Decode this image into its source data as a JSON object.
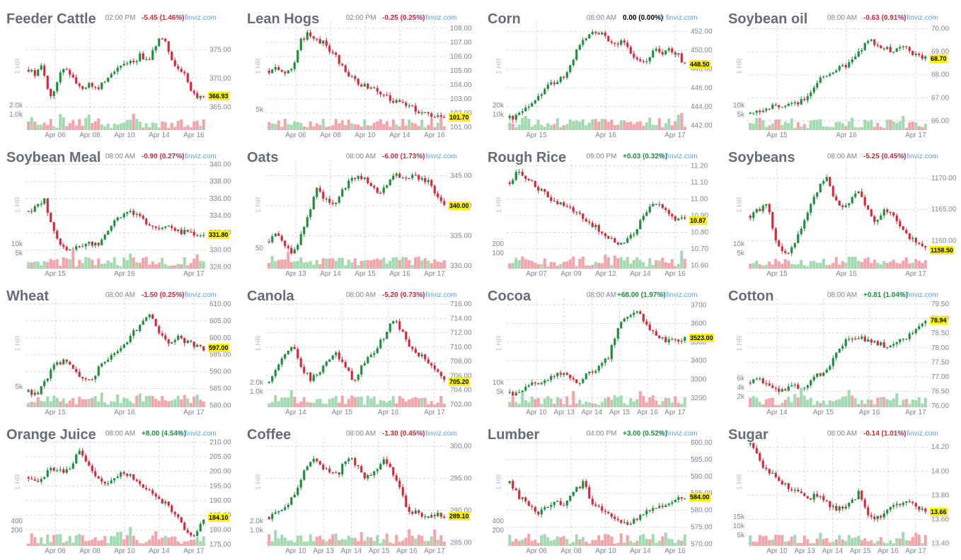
{
  "charts": [
    {
      "name": "Feeder Cattle",
      "time": "02:00 PM",
      "change": "-5.45 (1.46%)",
      "dir": "down",
      "credit": "© finviz.com",
      "ylabel": "1 HR",
      "last": "366.93",
      "yticks": [
        "375.00",
        "370.00",
        "365.00"
      ],
      "ylim": [
        361.0,
        379.5
      ],
      "volticks": [
        "2.0k",
        "1.0k"
      ],
      "xticks": [
        "Apr 06",
        "Apr 08",
        "Apr 10",
        "Apr 14",
        "Apr 16"
      ],
      "path": [
        371.5,
        370.5,
        372.5,
        366.5,
        369.0,
        372.0,
        371.0,
        368.5,
        368.5,
        369.0,
        368.0,
        370.0,
        371.5,
        372.0,
        373.0,
        373.0,
        374.0,
        373.0,
        375.5,
        377.5,
        375.0,
        372.0,
        371.5,
        368.0,
        367.0,
        366.93
      ]
    },
    {
      "name": "Lean Hogs",
      "time": "02:00 PM",
      "change": "-0.25 (0.25%)",
      "dir": "down",
      "credit": "© finviz.com",
      "ylabel": "1 HR",
      "last": "101.70",
      "yticks": [
        "108.00",
        "107.00",
        "106.00",
        "105.00",
        "104.00",
        "103.00",
        "102.00",
        "101.00"
      ],
      "ylim": [
        100.8,
        108.3
      ],
      "volticks": [
        "5k"
      ],
      "xticks": [
        "Apr 06",
        "Apr 08",
        "Apr 10",
        "Apr 14",
        "Apr 16"
      ],
      "path": [
        105.0,
        105.2,
        104.8,
        105.1,
        107.0,
        107.6,
        107.3,
        107.0,
        106.5,
        105.8,
        105.0,
        104.4,
        104.0,
        103.8,
        103.6,
        103.3,
        103.0,
        102.7,
        102.5,
        102.3,
        102.1,
        101.9,
        101.8,
        101.7
      ]
    },
    {
      "name": "Corn",
      "time": "08:00 AM",
      "change": "0.00 (0.00%)",
      "dir": "flat",
      "credit": "© finviz.com",
      "ylabel": "1 HR",
      "last": "448.50",
      "yticks": [
        "452.00",
        "450.00",
        "448.00",
        "446.00",
        "444.00",
        "442.00"
      ],
      "ylim": [
        441.5,
        452.8
      ],
      "volticks": [
        "20k",
        "10k"
      ],
      "xticks": [
        "Apr 15",
        "Apr 16",
        "Apr 17"
      ],
      "path": [
        442.8,
        443.0,
        443.5,
        444.0,
        445.0,
        446.0,
        446.5,
        446.8,
        447.5,
        449.0,
        450.5,
        451.5,
        452.0,
        451.8,
        451.0,
        450.5,
        451.0,
        450.0,
        449.0,
        448.5,
        449.5,
        450.0,
        449.8,
        450.2,
        449.5,
        448.5
      ]
    },
    {
      "name": "Soybean oil",
      "time": "08:00 AM",
      "change": "-0.63 (0.91%)",
      "dir": "down",
      "credit": "© finviz.com",
      "ylabel": "1 HR",
      "last": "68.70",
      "yticks": [
        "70.00",
        "69.00",
        "68.00",
        "67.00",
        "66.00"
      ],
      "ylim": [
        65.6,
        70.2
      ],
      "volticks": [
        "10k",
        "5k"
      ],
      "xticks": [
        "Apr 15",
        "Apr 16",
        "Apr 17"
      ],
      "path": [
        66.3,
        66.4,
        66.5,
        66.6,
        66.7,
        66.8,
        66.7,
        66.9,
        67.3,
        67.8,
        68.0,
        68.2,
        68.3,
        68.5,
        68.8,
        69.3,
        69.5,
        69.2,
        69.1,
        69.0,
        69.2,
        69.0,
        68.8,
        68.7
      ]
    },
    {
      "name": "Soybean Meal",
      "time": "08:00 AM",
      "change": "-0.90 (0.27%)",
      "dir": "down",
      "credit": "© finviz.com",
      "ylabel": "1 HR",
      "last": "331.80",
      "yticks": [
        "340.00",
        "338.00",
        "336.00",
        "334.00",
        "332.00",
        "330.00",
        "328.00"
      ],
      "ylim": [
        327.8,
        340.2
      ],
      "volticks": [
        "10k",
        "5k"
      ],
      "xticks": [
        "Apr 15",
        "Apr 16",
        "Apr 17"
      ],
      "path": [
        334.5,
        335.0,
        336.0,
        333.0,
        331.0,
        330.0,
        330.2,
        330.5,
        331.0,
        330.5,
        332.0,
        333.0,
        334.0,
        334.5,
        334.0,
        333.5,
        333.0,
        332.5,
        333.0,
        332.5,
        332.0,
        332.2,
        331.8,
        331.8
      ]
    },
    {
      "name": "Oats",
      "time": "08:00 AM",
      "change": "-6.00 (1.73%)",
      "dir": "down",
      "credit": "© finviz.com",
      "ylabel": "1 HR",
      "last": "340.00",
      "yticks": [
        "345.00",
        "340.00",
        "335.00",
        "330.00"
      ],
      "ylim": [
        329.5,
        347.2
      ],
      "volticks": [
        "50"
      ],
      "xticks": [
        "Apr 13",
        "Apr 14",
        "Apr 15",
        "Apr 16",
        "Apr 17"
      ],
      "path": [
        334.0,
        336.0,
        333.0,
        332.0,
        335.0,
        339.0,
        343.0,
        341.0,
        340.0,
        342.0,
        344.0,
        345.0,
        344.5,
        343.5,
        342.0,
        344.0,
        345.5,
        344.0,
        345.0,
        344.5,
        344.0,
        342.0,
        340.0
      ]
    },
    {
      "name": "Rough Rice",
      "time": "09:00 PM",
      "change": "+0.03 (0.32%)",
      "dir": "up",
      "credit": "© finviz.com",
      "ylabel": "1 HR",
      "last": "10.87",
      "yticks": [
        "11.20",
        "11.10",
        "11.00",
        "10.90",
        "10.80",
        "10.70",
        "10.60"
      ],
      "ylim": [
        10.58,
        11.22
      ],
      "volticks": [
        "200",
        "100"
      ],
      "xticks": [
        "Apr 07",
        "Apr 09",
        "Apr 12",
        "Apr 14",
        "Apr 16"
      ],
      "path": [
        11.1,
        11.17,
        11.12,
        11.08,
        11.05,
        11.0,
        10.97,
        10.95,
        10.92,
        10.88,
        10.84,
        10.8,
        10.76,
        10.72,
        10.74,
        10.8,
        10.9,
        10.98,
        10.96,
        10.92,
        10.88,
        10.87
      ]
    },
    {
      "name": "Soybeans",
      "time": "08:00 AM",
      "change": "-5.25 (0.45%)",
      "dir": "down",
      "credit": "© finviz.com",
      "ylabel": "1 HR",
      "last": "1158.50",
      "yticks": [
        "1170.00",
        "1165.00",
        "1160.00"
      ],
      "ylim": [
        1155.5,
        1172.5
      ],
      "volticks": [
        "10k",
        "5k"
      ],
      "xticks": [
        "Apr 15",
        "Apr 16",
        "Apr 17"
      ],
      "path": [
        1164.0,
        1165.0,
        1166.0,
        1160.0,
        1157.5,
        1159.0,
        1162.0,
        1165.0,
        1168.0,
        1170.5,
        1167.0,
        1165.0,
        1166.5,
        1168.0,
        1165.0,
        1163.0,
        1165.0,
        1164.0,
        1162.0,
        1160.5,
        1159.5,
        1158.5
      ]
    },
    {
      "name": "Wheat",
      "time": "08:00 AM",
      "change": "-1.50 (0.25%)",
      "dir": "down",
      "credit": "© finviz.com",
      "ylabel": "1 HR",
      "last": "597.00",
      "yticks": [
        "610.00",
        "605.00",
        "600.00",
        "595.00",
        "590.00",
        "585.00",
        "580.00"
      ],
      "ylim": [
        579.5,
        610.8
      ],
      "volticks": [
        "5k"
      ],
      "xticks": [
        "Apr 15",
        "Apr 16",
        "Apr 17"
      ],
      "path": [
        584.0,
        583.0,
        588.0,
        592.0,
        593.0,
        591.0,
        588.0,
        587.0,
        591.0,
        594.0,
        595.0,
        598.0,
        602.0,
        604.0,
        607.0,
        601.0,
        599.0,
        600.0,
        599.0,
        598.0,
        597.0
      ]
    },
    {
      "name": "Canola",
      "time": "08:00 AM",
      "change": "-5.20 (0.73%)",
      "dir": "down",
      "credit": "© finviz.com",
      "ylabel": "1 HR",
      "last": "705.20",
      "yticks": [
        "716.00",
        "714.00",
        "712.00",
        "710.00",
        "708.00",
        "706.00",
        "704.00",
        "702.00"
      ],
      "ylim": [
        701.6,
        716.4
      ],
      "volticks": [
        "2.0k",
        "1.0k"
      ],
      "xticks": [
        "Apr 14",
        "Apr 15",
        "Apr 16",
        "Apr 17"
      ],
      "path": [
        705.0,
        707.0,
        709.0,
        710.0,
        707.0,
        705.5,
        706.5,
        708.0,
        709.0,
        708.0,
        705.0,
        707.0,
        708.5,
        710.0,
        712.0,
        714.0,
        712.0,
        710.0,
        709.0,
        708.0,
        706.5,
        705.2
      ]
    },
    {
      "name": "Cocoa",
      "time": "08:00 AM",
      "change": "+68.00 (1.97%)",
      "dir": "up",
      "credit": "© finviz.com",
      "ylabel": "1 HR",
      "last": "3523.00",
      "yticks": [
        "3700",
        "3600",
        "3500",
        "3400",
        "3300",
        "3200"
      ],
      "ylim": [
        3150,
        3720
      ],
      "volticks": [
        "10k",
        "5k"
      ],
      "xticks": [
        "Apr 10",
        "Apr 13",
        "Apr 14",
        "Apr 15",
        "Apr 16",
        "Apr 17"
      ],
      "path": [
        3230,
        3220,
        3250,
        3280,
        3290,
        3300,
        3320,
        3330,
        3310,
        3280,
        3330,
        3350,
        3380,
        3420,
        3560,
        3620,
        3640,
        3660,
        3580,
        3550,
        3520,
        3500,
        3510,
        3523
      ]
    },
    {
      "name": "Cotton",
      "time": "08:00 AM",
      "change": "+0.81 (1.04%)",
      "dir": "up",
      "credit": "© finviz.com",
      "ylabel": "1 HR",
      "last": "78.94",
      "yticks": [
        "79.50",
        "79.00",
        "78.50",
        "78.00",
        "77.50",
        "77.00",
        "76.50",
        "76.00"
      ],
      "ylim": [
        75.95,
        79.6
      ],
      "volticks": [
        "6k",
        "4k",
        "2k"
      ],
      "xticks": [
        "Apr 14",
        "Apr 15",
        "Apr 16",
        "Apr 17"
      ],
      "path": [
        76.8,
        76.9,
        76.8,
        76.5,
        76.6,
        76.7,
        76.6,
        76.9,
        77.1,
        77.4,
        77.9,
        78.3,
        78.4,
        78.3,
        78.2,
        78.1,
        78.0,
        78.2,
        78.4,
        78.6,
        78.94
      ]
    },
    {
      "name": "Orange Juice",
      "time": "08:00 AM",
      "change": "+8.00 (4.54%)",
      "dir": "up",
      "credit": "© finviz.com",
      "ylabel": "1 HR",
      "last": "184.10",
      "yticks": [
        "210.00",
        "205.00",
        "200.00",
        "195.00",
        "190.00",
        "185.00",
        "180.00",
        "175.00"
      ],
      "ylim": [
        174.5,
        210.8
      ],
      "volticks": [
        "400",
        "200"
      ],
      "xticks": [
        "Apr 06",
        "Apr 08",
        "Apr 10",
        "Apr 14",
        "Apr 17"
      ],
      "path": [
        198.0,
        197.0,
        199.0,
        201.0,
        200.0,
        201.0,
        207.0,
        203.0,
        198.0,
        196.0,
        197.0,
        200.0,
        199.0,
        196.0,
        194.0,
        192.0,
        190.0,
        187.0,
        184.0,
        179.0,
        177.0,
        184.1
      ]
    },
    {
      "name": "Coffee",
      "time": "08:00 AM",
      "change": "-1.30 (0.45%)",
      "dir": "down",
      "credit": "© finviz.com",
      "ylabel": "1 HR",
      "last": "289.10",
      "yticks": [
        "300.00",
        "295.00",
        "290.00",
        "285.00"
      ],
      "ylim": [
        284.5,
        301.0
      ],
      "volticks": [
        "2.0k",
        "1.0k"
      ],
      "xticks": [
        "Apr 10",
        "Apr 13",
        "Apr 14",
        "Apr 15",
        "Apr 16",
        "Apr 17"
      ],
      "path": [
        289.0,
        289.5,
        290.5,
        293.0,
        296.0,
        298.5,
        297.0,
        295.5,
        296.0,
        298.5,
        297.0,
        295.0,
        296.0,
        298.0,
        296.5,
        293.0,
        289.5,
        290.0,
        288.5,
        289.5,
        289.1
      ]
    },
    {
      "name": "Lumber",
      "time": "04:00 PM",
      "change": "+3.00 (0.52%)",
      "dir": "up",
      "credit": "© finviz.com",
      "ylabel": "1 HR",
      "last": "584.00",
      "yticks": [
        "600.00",
        "595.00",
        "590.00",
        "585.00",
        "580.00",
        "575.00",
        "570.00"
      ],
      "ylim": [
        569.5,
        600.8
      ],
      "volticks": [
        "400",
        "200"
      ],
      "xticks": [
        "Apr 06",
        "Apr 08",
        "Apr 10",
        "Apr 14",
        "Apr 16"
      ],
      "path": [
        588.0,
        584.0,
        582.0,
        579.0,
        581.0,
        583.0,
        581.0,
        586.0,
        588.0,
        582.0,
        580.0,
        578.0,
        577.0,
        576.0,
        578.0,
        580.0,
        581.0,
        582.0,
        583.0,
        584.0
      ]
    },
    {
      "name": "Sugar",
      "time": "08:00 AM",
      "change": "-0.14 (1.01%)",
      "dir": "down",
      "credit": "© finviz.com",
      "ylabel": "1 HR",
      "last": "13.66",
      "yticks": [
        "14.20",
        "14.00",
        "13.80",
        "13.60",
        "13.40"
      ],
      "ylim": [
        13.38,
        14.26
      ],
      "volticks": [
        "15k",
        "10k",
        "5k"
      ],
      "xticks": [
        "Apr 10",
        "Apr 13",
        "Apr 14",
        "Apr 15",
        "Apr 16",
        "Apr 17"
      ],
      "path": [
        14.22,
        14.1,
        14.0,
        13.95,
        13.9,
        13.85,
        13.82,
        13.78,
        13.8,
        13.75,
        13.7,
        13.68,
        13.74,
        13.82,
        13.65,
        13.6,
        13.65,
        13.7,
        13.72,
        13.76,
        13.68,
        13.66
      ]
    }
  ],
  "colors": {
    "up": "#1d8f3b",
    "down": "#d62839",
    "flat": "#000000",
    "vol_up": "#a3d9b1",
    "vol_down": "#f1a4ac",
    "grid": "#c9ced6",
    "last_bg": "#fff200"
  }
}
